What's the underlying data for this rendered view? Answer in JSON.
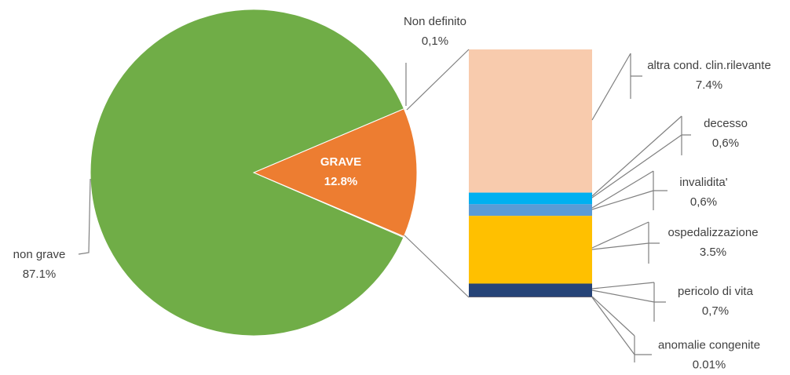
{
  "chart_data": [
    {
      "type": "pie",
      "categories": [
        "non grave",
        "GRAVE",
        "Non definito"
      ],
      "values": [
        87.1,
        12.8,
        0.1
      ],
      "value_labels": [
        "87.1%",
        "12.8%",
        "0,1%"
      ],
      "colors": [
        "#70ad47",
        "#ed7d31",
        "#f4b183"
      ]
    },
    {
      "type": "bar",
      "categories": [
        "anomalie congenite",
        "pericolo di vita",
        "ospedalizzazione",
        "invalidita'",
        "decesso",
        "altra cond. clin.rilevante"
      ],
      "values": [
        0.01,
        0.7,
        3.5,
        0.6,
        0.6,
        7.4
      ],
      "value_labels": [
        "0.01%",
        "0,7%",
        "3.5%",
        "0,6%",
        "0,6%",
        "7.4%"
      ],
      "colors": [
        "#9e480e",
        "#264478",
        "#ffc000",
        "#5b9bd5",
        "#00b0f0",
        "#f8cbad"
      ]
    }
  ]
}
